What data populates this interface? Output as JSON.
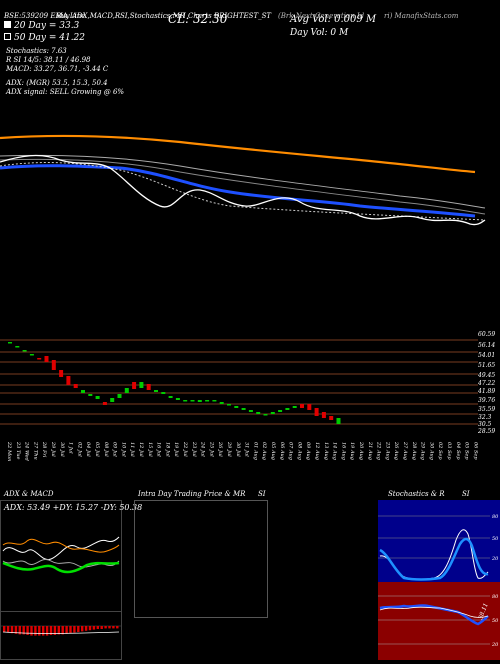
{
  "header": {
    "line1_a": "BSE:539209 EMA Line",
    "line1_b": "Buy ADX,MACD,R",
    "line1_c": "SI,Stochastics,MR",
    "line1_d": "I Charts BRIGHTEST_ST",
    "line1_e": "(Brk Next Generation Id",
    "line1_f": "ri) ManafixStats.com",
    "ema20": "20  Day = 33.3",
    "close": "CL: 32.30",
    "avg_vol": "Avg Vol: 0.009  M",
    "ema50": "50  Day = 41.22",
    "day_vol": "Day Vol: 0   M",
    "stoch": "Stochastics: 7.63",
    "rsi": "R                   SI 14/5: 38.11 / 46.98",
    "macd": "MACD: 33.27,  36.71,  -3.44   C",
    "adx": "ADX:                          (MGR) 53.5,  15.3,  50.4",
    "adx_signal": "ADX  signal: SELL  Growing @ 6%"
  },
  "colors": {
    "orange_line": "#ff8c00",
    "blue_line": "#1e50ff",
    "green_candle": "#00cc00",
    "red_candle": "#e00000",
    "grid_line": "#a0522d",
    "rsi_panel": "#8b0000",
    "stoch_panel": "#00008b"
  },
  "price_axis": [
    "60.59",
    "56.14",
    "54.01",
    "51.65",
    "49.45",
    "47.22",
    "41.89",
    "39.76",
    "35.59",
    "32.3",
    "30.5",
    "28.59"
  ],
  "date_labels": [
    "22 Mon",
    "23 Tue",
    "24 Wed",
    "27 Thu",
    "28 Fri",
    "29 Jul",
    "30 Jul",
    "1 Jul",
    "02 Jul",
    "04 Jul",
    "05 Jul",
    "08 Jul",
    "09 Jul",
    "10 Jul",
    "11 Jul",
    "12 Jul",
    "15 Jul",
    "16 Jul",
    "18 Jul",
    "19 Jul",
    "22 Jul",
    "23 Jul",
    "24 Jul",
    "25 Jul",
    "26 Jul",
    "29 Jul",
    "30 Jul",
    "31 Jul",
    "01 Aug",
    "02 Aug",
    "05 Aug",
    "06 Aug",
    "07 Aug",
    "08 Aug",
    "09 Aug",
    "12 Aug",
    "13 Aug",
    "14 Aug",
    "16 Aug",
    "19 Aug",
    "20 Aug",
    "21 Aug",
    "22 Aug",
    "23 Aug",
    "26 Aug",
    "27 Aug",
    "28 Aug",
    "29 Aug",
    "30 Aug",
    "02 Sep",
    "03 Sep",
    "04 Sep",
    "05 Sep",
    "06 Sep"
  ],
  "panels": {
    "adx_title": "ADX  & MACD",
    "adx_values": "ADX: 53.49 +DY: 15.27 -DY: 50.38",
    "intraday_title": "Intra  Day Trading Price  & MR",
    "intraday_si": "SI",
    "stoch_title": "Stochastics & R",
    "stoch_si": "SI",
    "stoch_ticks": [
      "80",
      "50",
      "20"
    ],
    "rsi_value": "38.11",
    "rsi_ticks": [
      "80",
      "50",
      "20"
    ]
  }
}
